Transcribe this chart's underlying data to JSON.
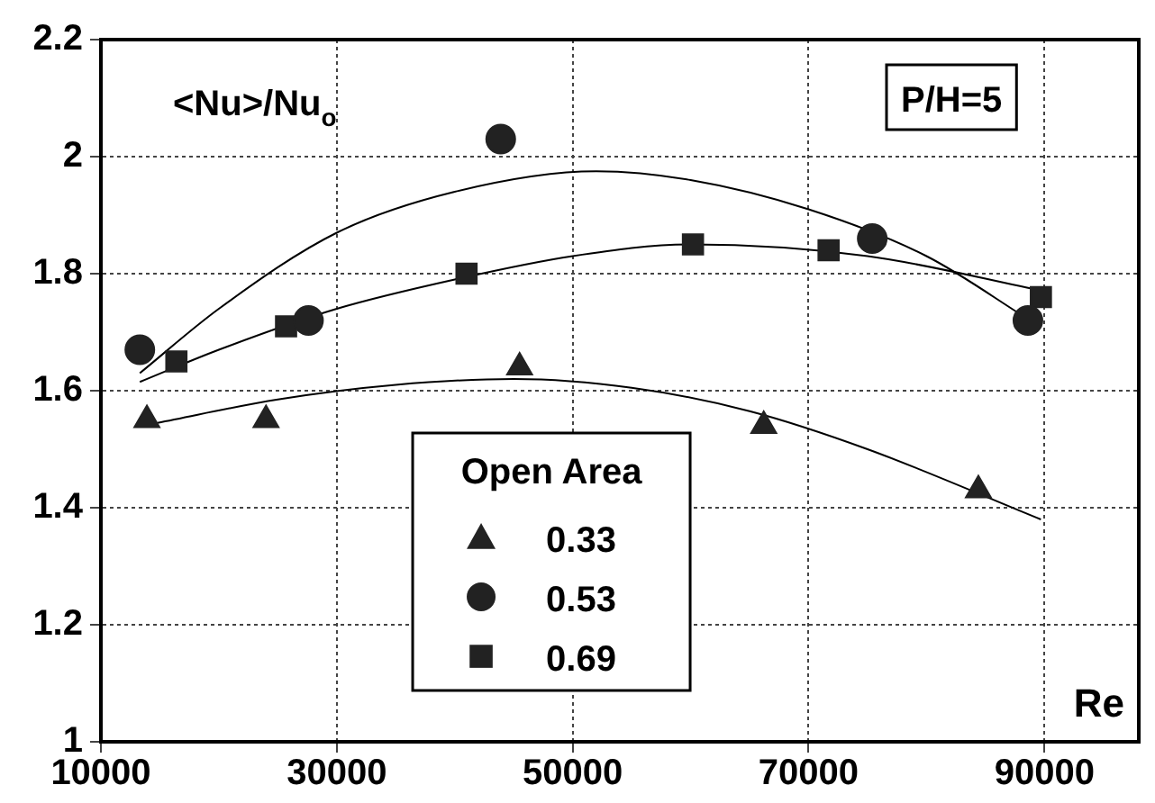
{
  "chart_data": {
    "type": "scatter",
    "ylabel": "<Nu>/Nu$_{o}$",
    "xlabel": "Re",
    "legend_title": "Open Area",
    "legend": "bottom",
    "grid": true,
    "xlim": [
      10000,
      98000
    ],
    "xticks": [
      10000,
      30000,
      50000,
      70000,
      90000
    ],
    "ylim": [
      1,
      2.2
    ],
    "yticks": [
      1,
      1.2,
      1.4,
      1.6,
      1.8,
      2,
      2.2
    ],
    "annotations": [
      "P/H=5"
    ],
    "series": [
      {
        "name": "0.33",
        "color": "#222222",
        "marker": "triangle",
        "x": [
          13900,
          24000,
          45500,
          66200,
          84400
        ],
        "values": [
          1.55,
          1.55,
          1.64,
          1.54,
          1.43
        ]
      },
      {
        "name": "0.53",
        "color": "#222222",
        "marker": "circle",
        "x": [
          13300,
          27600,
          43900,
          75400,
          88600
        ],
        "values": [
          1.67,
          1.72,
          2.03,
          1.86,
          1.72
        ]
      },
      {
        "name": "0.69",
        "color": "#222222",
        "marker": "square",
        "x": [
          16400,
          25700,
          41000,
          60200,
          71700,
          89700
        ],
        "values": [
          1.65,
          1.71,
          1.8,
          1.85,
          1.84,
          1.76
        ]
      },
      {
        "type": "line",
        "color": "#000000",
        "marker": "none",
        "x": [
          14800,
          25000,
          35000,
          45000,
          55000,
          65000,
          75000,
          89700
        ],
        "values": [
          1.545,
          1.585,
          1.61,
          1.62,
          1.605,
          1.565,
          1.5,
          1.38
        ]
      },
      {
        "type": "line",
        "color": "#000000",
        "marker": "none",
        "x": [
          13300,
          20000,
          30000,
          40000,
          52000,
          60000,
          70000,
          80000,
          88800
        ],
        "values": [
          1.63,
          1.74,
          1.87,
          1.94,
          1.975,
          1.96,
          1.91,
          1.83,
          1.72
        ]
      },
      {
        "type": "line",
        "color": "#000000",
        "marker": "none",
        "x": [
          13300,
          20000,
          30000,
          40000,
          50000,
          60000,
          75000,
          90000
        ],
        "values": [
          1.615,
          1.67,
          1.74,
          1.79,
          1.83,
          1.85,
          1.83,
          1.77
        ]
      }
    ]
  }
}
